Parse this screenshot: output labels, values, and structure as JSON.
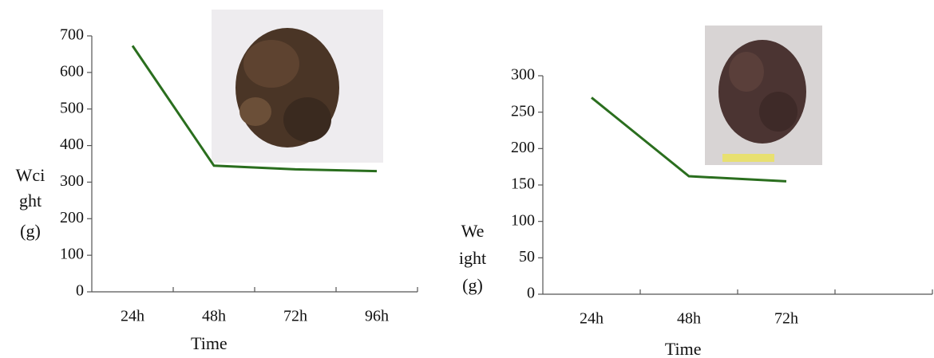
{
  "chart_data": [
    {
      "type": "line",
      "x_label": "Time",
      "y_label": [
        "Wci",
        "ght",
        "(g)"
      ],
      "categories": [
        "24h",
        "48h",
        "72h",
        "96h"
      ],
      "values": [
        673,
        345,
        335,
        330
      ],
      "color": "#2a6e1e",
      "ylim": [
        0,
        700
      ],
      "yticks": [
        0,
        100,
        200,
        300,
        400,
        500,
        600,
        700
      ]
    },
    {
      "type": "line",
      "x_label": "Time",
      "y_label": [
        "We",
        "ight",
        "(g)"
      ],
      "categories": [
        "24h",
        "48h",
        "72h",
        null
      ],
      "values": [
        270,
        162,
        155,
        null
      ],
      "color": "#2a6e1e",
      "ylim": [
        0,
        300
      ],
      "yticks": [
        0,
        50,
        100,
        150,
        200,
        250,
        300
      ]
    }
  ]
}
